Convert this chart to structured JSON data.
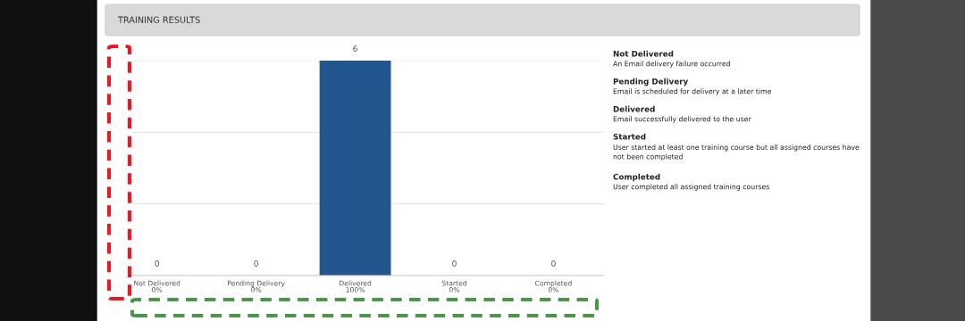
{
  "chart_data": {
    "type": "bar",
    "title": "TRAINING RESULTS",
    "categories": [
      "Not Delivered\n0%",
      "Pending Delivery\n0%",
      "Delivered\n100%",
      "Started\n0%",
      "Completed\n0%"
    ],
    "values": [
      0,
      0,
      6,
      0,
      0
    ],
    "color": "#23568f",
    "data_labels": true,
    "ylim": [
      0,
      6
    ],
    "yticks": [
      {
        "value": 0,
        "label": null
      },
      {
        "value": 2,
        "label": null
      },
      {
        "value": 4,
        "label": null
      },
      {
        "value": 6,
        "label": null
      }
    ],
    "tick_labels": "x",
    "grid": "y",
    "annotations": [
      "Not Delivered",
      "An Email delivery failure occurred",
      "Pending Delivery",
      "Email is scheduled for delivery at a later time",
      "Delivered",
      "Email successfully delivered to the user",
      "Started",
      "User started at least one training course but all assigned courses have not been completed",
      "Completed",
      "User completed all assigned training courses"
    ]
  }
}
